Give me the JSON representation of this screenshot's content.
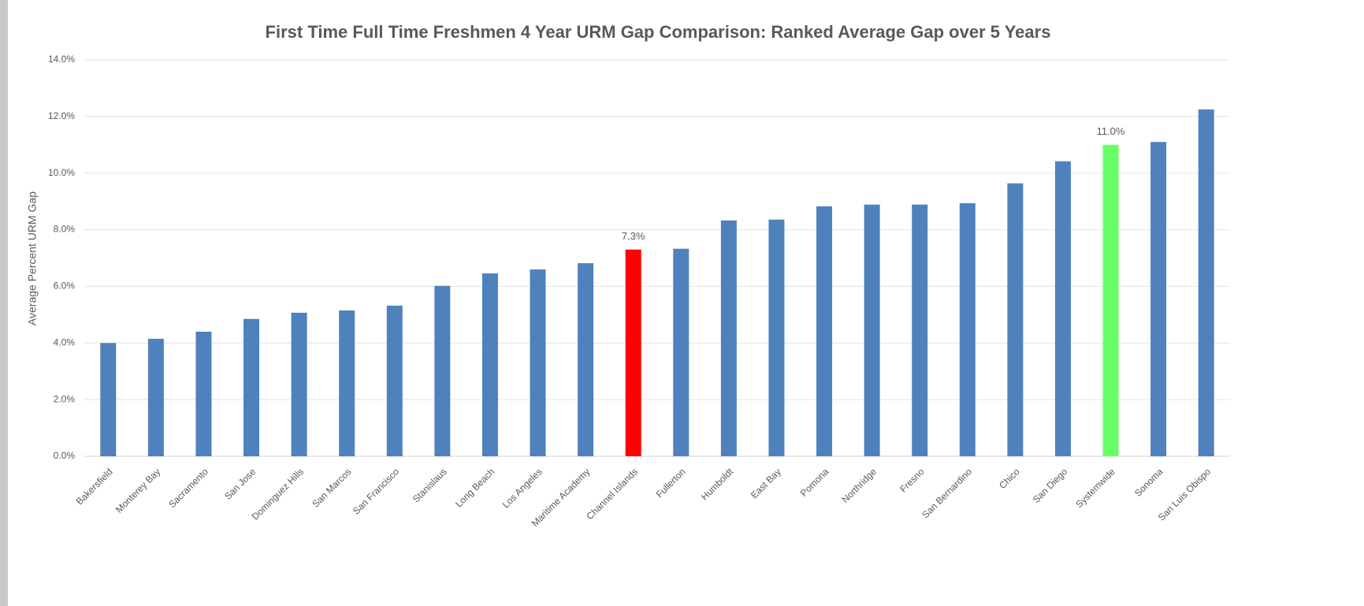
{
  "chart_data": {
    "type": "bar",
    "title": "First Time Full Time Freshmen 4 Year URM Gap Comparison: Ranked Average Gap over 5 Years",
    "y_label": "Average Percent URM Gap",
    "categories": [
      "Bakersfield",
      "Monterey Bay",
      "Sacramento",
      "San Jose",
      "Dominguez Hills",
      "San Marcos",
      "San Francisco",
      "Stanislaus",
      "Long Beach",
      "Los Angeles",
      "Maritime Academy",
      "Channel Islands",
      "Fullerton",
      "Humboldt",
      "East Bay",
      "Pomona",
      "Northridge",
      "Fresno",
      "San Bernardino",
      "Chico",
      "San Diego",
      "Systemwide",
      "Sonoma",
      "San Luis Obispo"
    ],
    "values": [
      4.0,
      4.15,
      4.4,
      4.85,
      5.07,
      5.15,
      5.32,
      6.02,
      6.46,
      6.6,
      6.82,
      7.3,
      7.33,
      8.33,
      8.36,
      8.83,
      8.89,
      8.89,
      8.94,
      9.64,
      10.42,
      11.0,
      11.1,
      12.25
    ],
    "value_labels": [
      null,
      null,
      null,
      null,
      null,
      null,
      null,
      null,
      null,
      null,
      null,
      "7.3%",
      null,
      null,
      null,
      null,
      null,
      null,
      null,
      null,
      null,
      "11.0%",
      null,
      null
    ],
    "colors": [
      "#4f81bd",
      "#4f81bd",
      "#4f81bd",
      "#4f81bd",
      "#4f81bd",
      "#4f81bd",
      "#4f81bd",
      "#4f81bd",
      "#4f81bd",
      "#4f81bd",
      "#4f81bd",
      "#ff0000",
      "#4f81bd",
      "#4f81bd",
      "#4f81bd",
      "#4f81bd",
      "#4f81bd",
      "#4f81bd",
      "#4f81bd",
      "#4f81bd",
      "#4f81bd",
      "#66ff66",
      "#4f81bd",
      "#4f81bd"
    ],
    "ylim": [
      0,
      14
    ],
    "yticks": [
      {
        "value": 0,
        "label": "0.0%"
      },
      {
        "value": 2,
        "label": "2.0%"
      },
      {
        "value": 4,
        "label": "4.0%"
      },
      {
        "value": 6,
        "label": "6.0%"
      },
      {
        "value": 8,
        "label": "8.0%"
      },
      {
        "value": 10,
        "label": "10.0%"
      },
      {
        "value": 12,
        "label": "12.0%"
      },
      {
        "value": 14,
        "label": "14.0%"
      }
    ],
    "grid": true
  }
}
